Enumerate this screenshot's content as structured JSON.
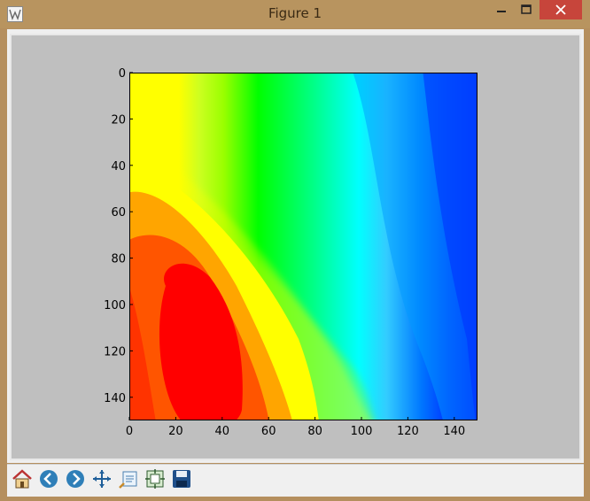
{
  "window": {
    "title": "Figure 1"
  },
  "toolbar": {
    "buttons": [
      {
        "name": "home",
        "icon": "home-icon"
      },
      {
        "name": "back",
        "icon": "back-arrow-icon"
      },
      {
        "name": "forward",
        "icon": "forward-arrow-icon"
      },
      {
        "name": "pan",
        "icon": "pan-move-icon"
      },
      {
        "name": "zoom",
        "icon": "zoom-rect-icon"
      },
      {
        "name": "configure-subplots",
        "icon": "subplots-icon"
      },
      {
        "name": "save",
        "icon": "save-floppy-icon"
      }
    ]
  },
  "chart_data": {
    "type": "heatmap",
    "title": "",
    "xlabel": "",
    "ylabel": "",
    "xlim": [
      0,
      150
    ],
    "ylim": [
      150,
      0
    ],
    "x_ticks": [
      "0",
      "20",
      "40",
      "60",
      "80",
      "100",
      "120",
      "140"
    ],
    "y_ticks": [
      "0",
      "20",
      "40",
      "60",
      "80",
      "100",
      "120",
      "140"
    ],
    "y_inverted": true,
    "colormap": "jet",
    "grid": false,
    "colors": [
      "#00007f",
      "#0000ff",
      "#0063ff",
      "#00d4ff",
      "#4effb0",
      "#b0ff4e",
      "#ffe500",
      "#ff7c00",
      "#ff1300",
      "#7f0000"
    ]
  }
}
